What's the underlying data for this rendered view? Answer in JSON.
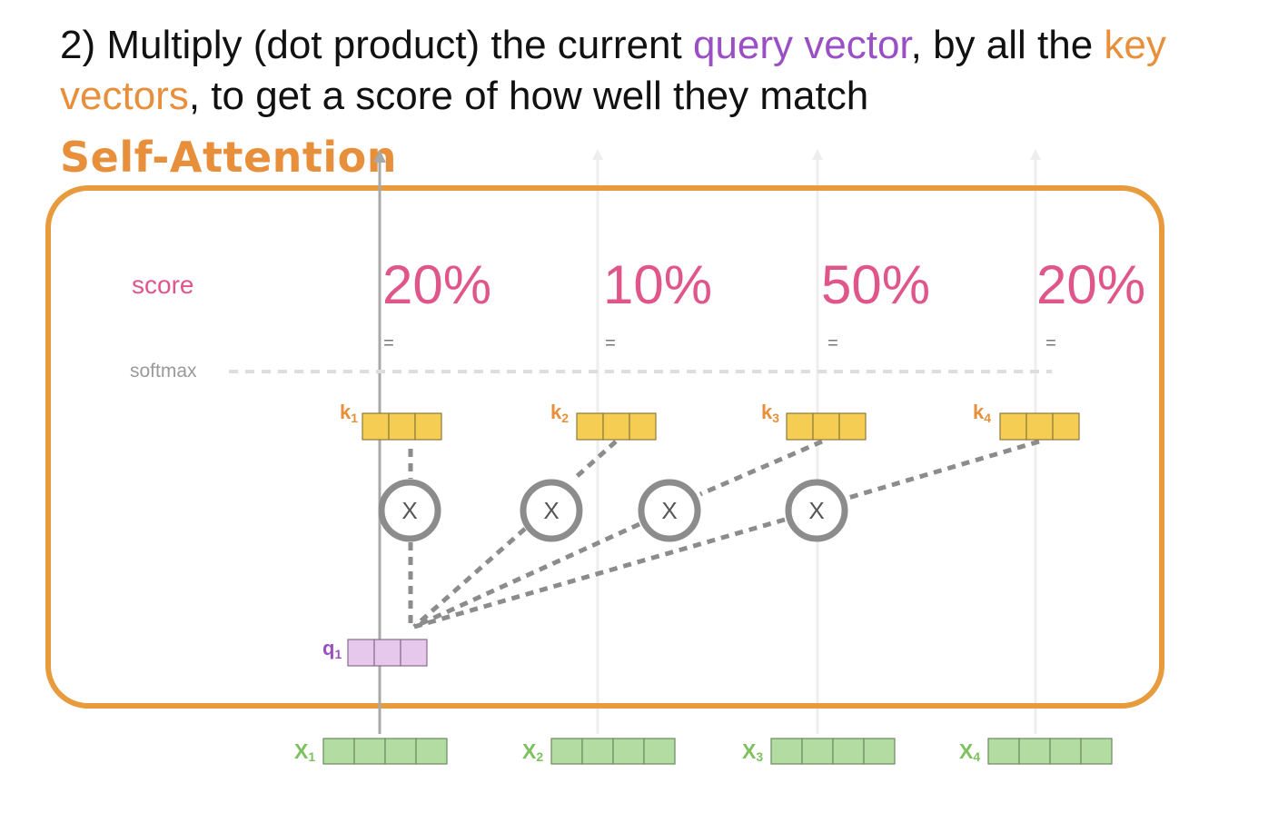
{
  "heading": {
    "prefix": "2) Multiply (dot product) the current ",
    "query_term": "query vector",
    "middle": ", by all the ",
    "key_term": "key vectors",
    "suffix": ", to get a score of how well they match"
  },
  "box_title": "Self-Attention",
  "row_labels": {
    "score": "score",
    "softmax": "softmax"
  },
  "scores": [
    "20%",
    "10%",
    "50%",
    "20%"
  ],
  "equals_sign": "=",
  "multiply_symbol": "X",
  "key_labels": [
    "k",
    "k",
    "k",
    "k"
  ],
  "key_subscripts": [
    "1",
    "2",
    "3",
    "4"
  ],
  "query_label": "q",
  "query_subscript": "1",
  "input_labels": [
    "X",
    "X",
    "X",
    "X"
  ],
  "input_subscripts": [
    "1",
    "2",
    "3",
    "4"
  ],
  "colors": {
    "query": "#9b4fc4",
    "key": "#e88f3c",
    "score": "#e0558a",
    "frame": "#e89b3c",
    "key_cell": "#f5cd52",
    "query_cell": "#e6c8ec",
    "input_cell": "#b2dca2",
    "input_label": "#7dc25e",
    "connector": "#8c8c8c",
    "softmax_line": "#dddddd"
  },
  "icons": {
    "multiply": "circled-x-icon",
    "flow_arrow": "up-arrow-icon"
  }
}
